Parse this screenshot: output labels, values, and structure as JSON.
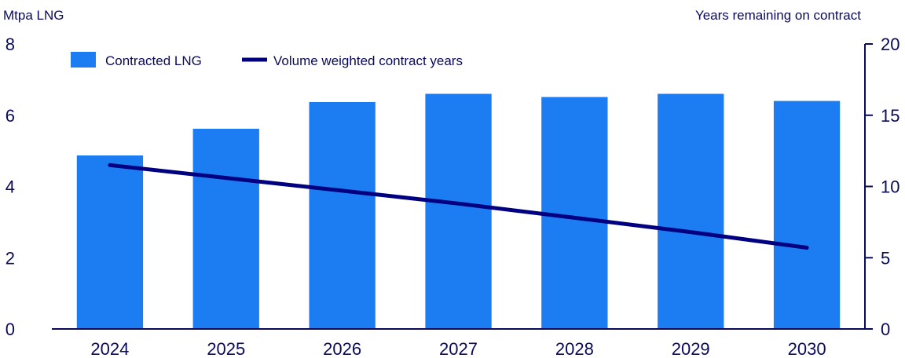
{
  "chart_data": {
    "type": "bar",
    "categories": [
      "2024",
      "2025",
      "2026",
      "2027",
      "2028",
      "2029",
      "2030"
    ],
    "series": [
      {
        "name": "Contracted LNG",
        "kind": "bar",
        "axis": "left",
        "color": "#1c7cf2",
        "values": [
          4.87,
          5.62,
          6.37,
          6.6,
          6.51,
          6.6,
          6.4
        ]
      },
      {
        "name": "Volume weighted contract years",
        "kind": "line",
        "axis": "right",
        "color": "#000080",
        "values": [
          11.5,
          10.6,
          9.7,
          8.8,
          7.8,
          6.8,
          5.7
        ]
      }
    ],
    "y_left": {
      "label": "Mtpa LNG",
      "range": [
        0,
        8
      ],
      "ticks": [
        0,
        2,
        4,
        6,
        8
      ]
    },
    "y_right": {
      "label": "Years remaining on contract",
      "range": [
        0,
        20
      ],
      "ticks": [
        0,
        5,
        10,
        15,
        20
      ]
    },
    "grid": false,
    "legend_position": "top-left"
  }
}
